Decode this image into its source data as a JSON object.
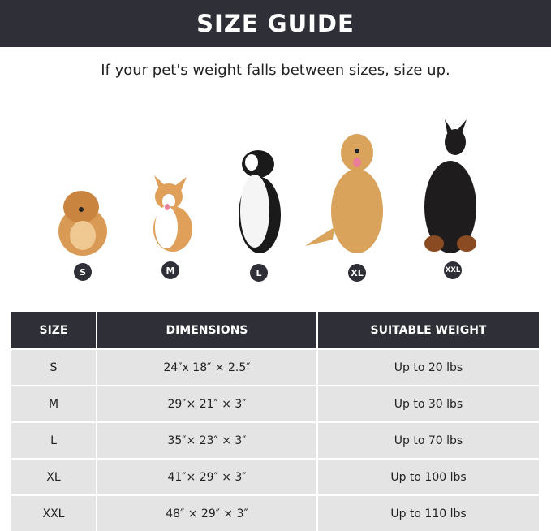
{
  "title": "SIZE GUIDE",
  "subtitle": "If your pet's weight falls between sizes, size up.",
  "dogs": [
    {
      "size": "S",
      "image": "pomeranian",
      "color": "#d99a55"
    },
    {
      "size": "M",
      "image": "corgi",
      "color": "#e0a05a"
    },
    {
      "size": "L",
      "image": "border-collie",
      "color": "#1a1a1a"
    },
    {
      "size": "XL",
      "image": "golden-retriever",
      "color": "#d9a35c"
    },
    {
      "size": "XXL",
      "image": "doberman",
      "color": "#1e1c1c"
    }
  ],
  "table": {
    "headers": [
      "SIZE",
      "DIMENSIONS",
      "SUITABLE WEIGHT"
    ],
    "rows": [
      [
        "S",
        "24″x 18″ × 2.5″",
        "Up to 20 lbs"
      ],
      [
        "M",
        "29″× 21″ × 3″",
        "Up to 30 lbs"
      ],
      [
        "L",
        "35″× 23″ × 3″",
        "Up to 70 lbs"
      ],
      [
        "XL",
        "41″× 29″ × 3″",
        "Up to 100 lbs"
      ],
      [
        "XXL",
        "48″ × 29″ × 3″",
        "Up to 110 lbs"
      ]
    ]
  },
  "colors": {
    "header_bg": "#2e2f37",
    "row_bg": "#e4e4e4"
  }
}
